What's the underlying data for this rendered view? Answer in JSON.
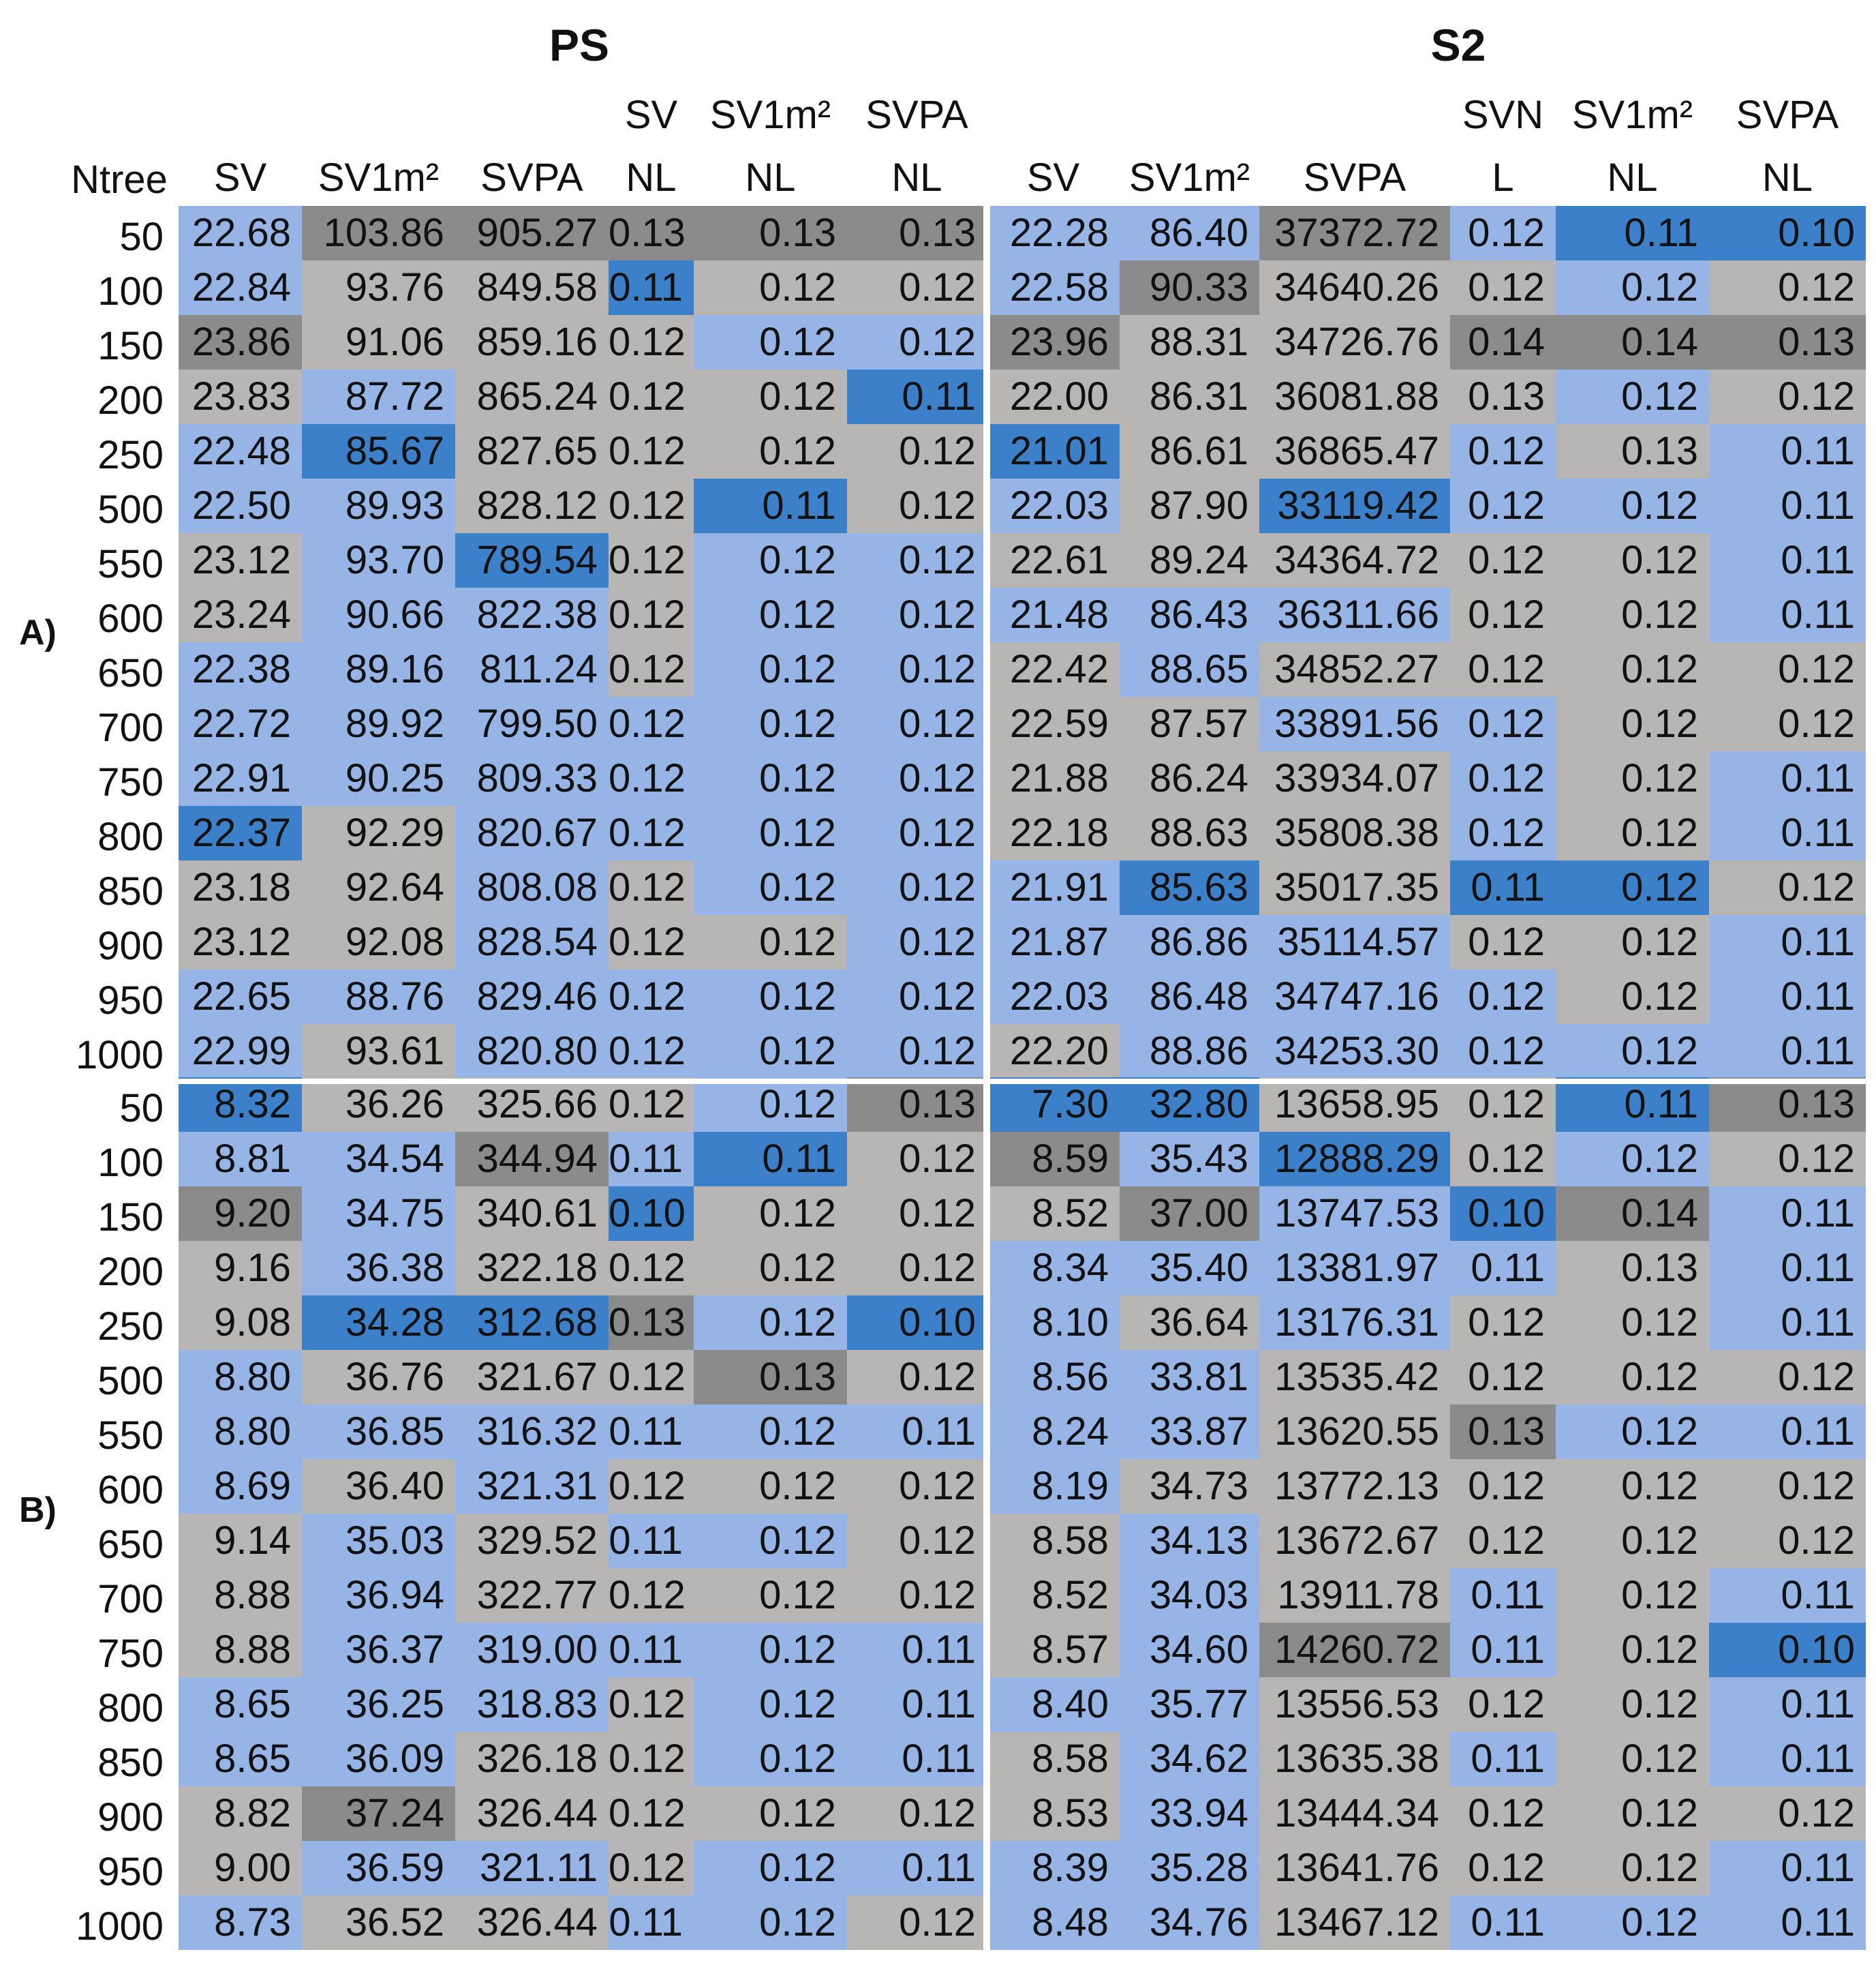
{
  "groups": [
    "PS",
    "S2"
  ],
  "row_header": "Ntree",
  "columns": {
    "PS": [
      {
        "top": "",
        "bottom": "SV"
      },
      {
        "top": "",
        "bottom": "SV1m²"
      },
      {
        "top": "",
        "bottom": "SVPA"
      },
      {
        "top": "SV",
        "bottom": "NL"
      },
      {
        "top": "SV1m²",
        "bottom": "NL"
      },
      {
        "top": "SVPA",
        "bottom": "NL"
      }
    ],
    "S2": [
      {
        "top": "",
        "bottom": "SV"
      },
      {
        "top": "",
        "bottom": "SV1m²"
      },
      {
        "top": "",
        "bottom": "SVPA"
      },
      {
        "top": "SVN",
        "bottom": "L"
      },
      {
        "top": "SV1m²",
        "bottom": "NL"
      },
      {
        "top": "SVPA",
        "bottom": "NL"
      }
    ]
  },
  "legend_colors": {
    "best": "#3d80ca",
    "better": "#96b4e6",
    "worse": "#b8b5b5",
    "worst": "#8b8b8b"
  },
  "chart_data": {
    "type": "table",
    "ntree": [
      "50",
      "100",
      "150",
      "200",
      "250",
      "500",
      "550",
      "600",
      "650",
      "700",
      "750",
      "800",
      "850",
      "900",
      "950",
      "1000"
    ],
    "panels": [
      {
        "label": "A)",
        "values": [
          [
            "22.68",
            "103.86",
            "905.27",
            "0.13",
            "0.13",
            "0.13",
            "22.28",
            "86.40",
            "37372.72",
            "0.12",
            "0.11",
            "0.10"
          ],
          [
            "22.84",
            "93.76",
            "849.58",
            "0.11",
            "0.12",
            "0.12",
            "22.58",
            "90.33",
            "34640.26",
            "0.12",
            "0.12",
            "0.12"
          ],
          [
            "23.86",
            "91.06",
            "859.16",
            "0.12",
            "0.12",
            "0.12",
            "23.96",
            "88.31",
            "34726.76",
            "0.14",
            "0.14",
            "0.13"
          ],
          [
            "23.83",
            "87.72",
            "865.24",
            "0.12",
            "0.12",
            "0.11",
            "22.00",
            "86.31",
            "36081.88",
            "0.13",
            "0.12",
            "0.12"
          ],
          [
            "22.48",
            "85.67",
            "827.65",
            "0.12",
            "0.12",
            "0.12",
            "21.01",
            "86.61",
            "36865.47",
            "0.12",
            "0.13",
            "0.11"
          ],
          [
            "22.50",
            "89.93",
            "828.12",
            "0.12",
            "0.11",
            "0.12",
            "22.03",
            "87.90",
            "33119.42",
            "0.12",
            "0.12",
            "0.11"
          ],
          [
            "23.12",
            "93.70",
            "789.54",
            "0.12",
            "0.12",
            "0.12",
            "22.61",
            "89.24",
            "34364.72",
            "0.12",
            "0.12",
            "0.11"
          ],
          [
            "23.24",
            "90.66",
            "822.38",
            "0.12",
            "0.12",
            "0.12",
            "21.48",
            "86.43",
            "36311.66",
            "0.12",
            "0.12",
            "0.11"
          ],
          [
            "22.38",
            "89.16",
            "811.24",
            "0.12",
            "0.12",
            "0.12",
            "22.42",
            "88.65",
            "34852.27",
            "0.12",
            "0.12",
            "0.12"
          ],
          [
            "22.72",
            "89.92",
            "799.50",
            "0.12",
            "0.12",
            "0.12",
            "22.59",
            "87.57",
            "33891.56",
            "0.12",
            "0.12",
            "0.12"
          ],
          [
            "22.91",
            "90.25",
            "809.33",
            "0.12",
            "0.12",
            "0.12",
            "21.88",
            "86.24",
            "33934.07",
            "0.12",
            "0.12",
            "0.11"
          ],
          [
            "22.37",
            "92.29",
            "820.67",
            "0.12",
            "0.12",
            "0.12",
            "22.18",
            "88.63",
            "35808.38",
            "0.12",
            "0.12",
            "0.11"
          ],
          [
            "23.18",
            "92.64",
            "808.08",
            "0.12",
            "0.12",
            "0.12",
            "21.91",
            "85.63",
            "35017.35",
            "0.11",
            "0.12",
            "0.12"
          ],
          [
            "23.12",
            "92.08",
            "828.54",
            "0.12",
            "0.12",
            "0.12",
            "21.87",
            "86.86",
            "35114.57",
            "0.12",
            "0.12",
            "0.11"
          ],
          [
            "22.65",
            "88.76",
            "829.46",
            "0.12",
            "0.12",
            "0.12",
            "22.03",
            "86.48",
            "34747.16",
            "0.12",
            "0.12",
            "0.11"
          ],
          [
            "22.99",
            "93.61",
            "820.80",
            "0.12",
            "0.12",
            "0.12",
            "22.20",
            "88.86",
            "34253.30",
            "0.12",
            "0.12",
            "0.11"
          ]
        ],
        "shades": [
          "LWWWWW LLWLDD",
          "LGGDGG LWGGLG",
          "WGGGLL WGGWWW",
          "GLGGGD GGGGLG",
          "LDGGGG DGGLGL",
          "LLGGDG LGDLLL",
          "GLDGLL GGGGGL",
          "GLLGLL LLLGGL",
          "LLLGLL GLGGGG",
          "LLLLLL GGLLGG",
          "LLLLLL GGGLGL",
          "DGLLLL GGGLGL",
          "GGLGLL LDGDDG",
          "GGLGGL LLLGGL",
          "LLLLLL LLLLGL",
          "LGLLLL GLLLLL"
        ]
      },
      {
        "label": "B)",
        "values": [
          [
            "8.32",
            "36.26",
            "325.66",
            "0.12",
            "0.12",
            "0.13",
            "7.30",
            "32.80",
            "13658.95",
            "0.12",
            "0.11",
            "0.13"
          ],
          [
            "8.81",
            "34.54",
            "344.94",
            "0.11",
            "0.11",
            "0.12",
            "8.59",
            "35.43",
            "12888.29",
            "0.12",
            "0.12",
            "0.12"
          ],
          [
            "9.20",
            "34.75",
            "340.61",
            "0.10",
            "0.12",
            "0.12",
            "8.52",
            "37.00",
            "13747.53",
            "0.10",
            "0.14",
            "0.11"
          ],
          [
            "9.16",
            "36.38",
            "322.18",
            "0.12",
            "0.12",
            "0.12",
            "8.34",
            "35.40",
            "13381.97",
            "0.11",
            "0.13",
            "0.11"
          ],
          [
            "9.08",
            "34.28",
            "312.68",
            "0.13",
            "0.12",
            "0.10",
            "8.10",
            "36.64",
            "13176.31",
            "0.12",
            "0.12",
            "0.11"
          ],
          [
            "8.80",
            "36.76",
            "321.67",
            "0.12",
            "0.13",
            "0.12",
            "8.56",
            "33.81",
            "13535.42",
            "0.12",
            "0.12",
            "0.12"
          ],
          [
            "8.80",
            "36.85",
            "316.32",
            "0.11",
            "0.12",
            "0.11",
            "8.24",
            "33.87",
            "13620.55",
            "0.13",
            "0.12",
            "0.11"
          ],
          [
            "8.69",
            "36.40",
            "321.31",
            "0.12",
            "0.12",
            "0.12",
            "8.19",
            "34.73",
            "13772.13",
            "0.12",
            "0.12",
            "0.12"
          ],
          [
            "9.14",
            "35.03",
            "329.52",
            "0.11",
            "0.12",
            "0.12",
            "8.58",
            "34.13",
            "13672.67",
            "0.12",
            "0.12",
            "0.12"
          ],
          [
            "8.88",
            "36.94",
            "322.77",
            "0.12",
            "0.12",
            "0.12",
            "8.52",
            "34.03",
            "13911.78",
            "0.11",
            "0.12",
            "0.11"
          ],
          [
            "8.88",
            "36.37",
            "319.00",
            "0.11",
            "0.12",
            "0.11",
            "8.57",
            "34.60",
            "14260.72",
            "0.11",
            "0.12",
            "0.10"
          ],
          [
            "8.65",
            "36.25",
            "318.83",
            "0.12",
            "0.12",
            "0.11",
            "8.40",
            "35.77",
            "13556.53",
            "0.12",
            "0.12",
            "0.11"
          ],
          [
            "8.65",
            "36.09",
            "326.18",
            "0.12",
            "0.12",
            "0.11",
            "8.58",
            "34.62",
            "13635.38",
            "0.11",
            "0.12",
            "0.11"
          ],
          [
            "8.82",
            "37.24",
            "326.44",
            "0.12",
            "0.12",
            "0.12",
            "8.53",
            "33.94",
            "13444.34",
            "0.12",
            "0.12",
            "0.12"
          ],
          [
            "9.00",
            "36.59",
            "321.11",
            "0.12",
            "0.12",
            "0.11",
            "8.39",
            "35.28",
            "13641.76",
            "0.12",
            "0.12",
            "0.11"
          ],
          [
            "8.73",
            "36.52",
            "326.44",
            "0.11",
            "0.12",
            "0.12",
            "8.48",
            "34.76",
            "13467.12",
            "0.11",
            "0.12",
            "0.11"
          ]
        ],
        "shades": [
          "DGGGLW DDGGDW",
          "LLWLDG WLDGLG",
          "WLGDGG GWLDWL",
          "GLGGGG LLLLGL",
          "GDDWLD LGLGGL",
          "LGGGWG LLGGGG",
          "LLLLLL LLGWLL",
          "LGLGGG LGGGGG",
          "GLGLLG GLGGGG",
          "GLGGGG GLGLGL",
          "GLLLLL GLWLGD",
          "LLLGLL LLGGGL",
          "LLGGLL GLGLGL",
          "GWGGGG GLGGGG",
          "GLLGLL LLGGGL",
          "LGGLLG LLGLLL"
        ]
      }
    ]
  }
}
